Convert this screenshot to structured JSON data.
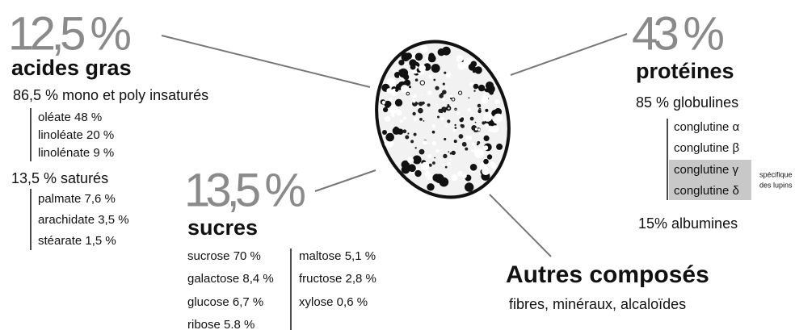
{
  "acides_gras": {
    "percent": "12,5 %",
    "title": "acides gras",
    "groups": [
      {
        "label": "86,5 % mono et poly insaturés",
        "items": [
          "oléate 48 %",
          "linoléate 20 %",
          "linolénate 9 %"
        ]
      },
      {
        "label": "13,5 % saturés",
        "items": [
          "palmate 7,6 %",
          "arachidate 3,5 %",
          "stéarate 1,5 %"
        ]
      }
    ]
  },
  "sucres": {
    "percent": "13,5 %",
    "title": "sucres",
    "columns": [
      [
        "sucrose 70 %",
        "galactose 8,4 %",
        "glucose 6,7 %",
        "ribose 5.8 %"
      ],
      [
        "maltose 5,1 %",
        "fructose 2,8 %",
        "xylose 0,6 %"
      ]
    ]
  },
  "proteines": {
    "percent": "43 %",
    "title": "protéines",
    "globulines": "85 % globulines",
    "items": [
      "conglutine α",
      "conglutine β",
      "conglutine γ",
      "conglutine δ"
    ],
    "note": [
      "spécifique",
      "des lupins"
    ],
    "albumines": "15% albumines"
  },
  "autres": {
    "title": "Autres composés",
    "text": "fibres, minéraux, alcaloïdes"
  }
}
